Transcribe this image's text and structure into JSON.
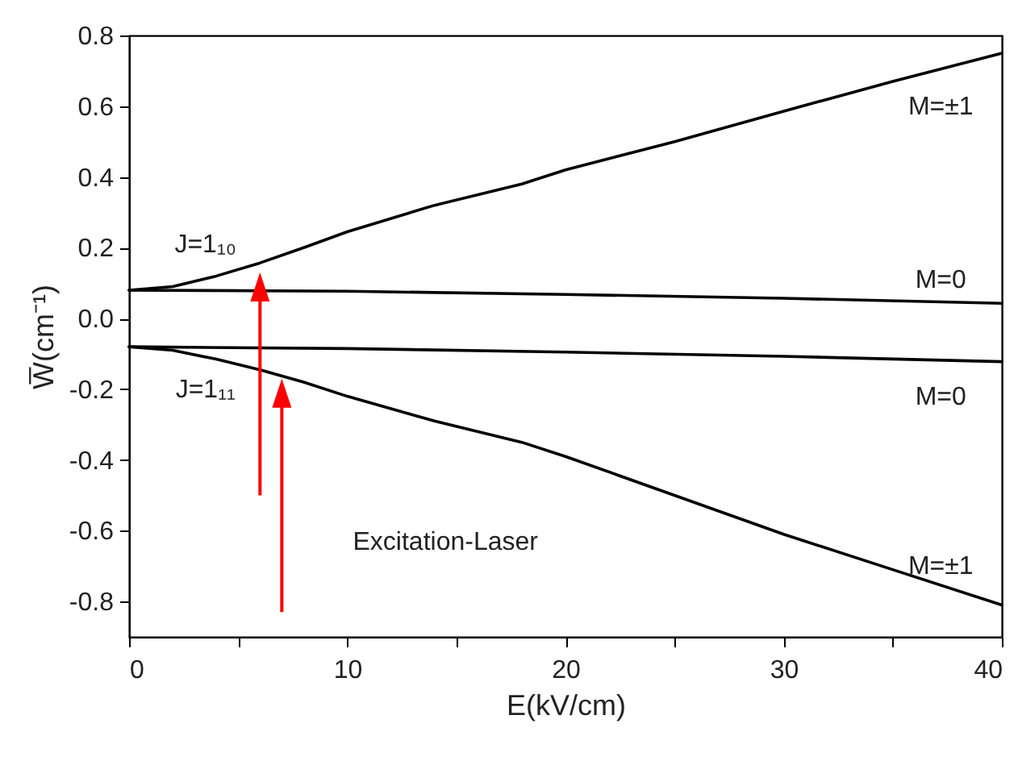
{
  "chart_data": {
    "type": "line",
    "xlabel": "E(kV/cm)",
    "ylabel": "W̅(cm⁻¹)",
    "xlim": [
      0,
      40
    ],
    "xticks": [
      0,
      {
        "value": 5,
        "label": null
      },
      10,
      {
        "value": 15,
        "label": null
      },
      20,
      {
        "value": 25,
        "label": null
      },
      30,
      {
        "value": 35,
        "label": null
      },
      40
    ],
    "ylim": [
      -0.9,
      0.8
    ],
    "yticks": [
      -0.8,
      -0.6,
      -0.4,
      -0.2,
      {
        "value": 0,
        "label": "0.0"
      },
      0.2,
      0.4,
      0.6,
      0.8
    ],
    "grid": false,
    "legend": false,
    "marker": "none",
    "line_style": "solid",
    "series": [
      {
        "color": "#000000",
        "x": [
          0,
          2,
          4,
          6,
          8,
          10,
          14,
          18,
          20,
          25,
          30,
          35,
          40
        ],
        "values": [
          0.08,
          0.09,
          0.12,
          0.157,
          0.2,
          0.245,
          0.32,
          0.38,
          0.42,
          0.5,
          0.586,
          0.67,
          0.75
        ]
      },
      {
        "color": "#000000",
        "x": [
          0,
          10,
          20,
          30,
          40
        ],
        "values": [
          0.08,
          0.077,
          0.068,
          0.057,
          0.043
        ]
      },
      {
        "color": "#000000",
        "x": [
          0,
          10,
          20,
          30,
          40
        ],
        "values": [
          -0.08,
          -0.085,
          -0.095,
          -0.107,
          -0.122
        ]
      },
      {
        "color": "#000000",
        "x": [
          0,
          2,
          4,
          6,
          8,
          10,
          14,
          18,
          20,
          25,
          30,
          35,
          40
        ],
        "values": [
          -0.08,
          -0.09,
          -0.115,
          -0.145,
          -0.18,
          -0.22,
          -0.29,
          -0.35,
          -0.39,
          -0.5,
          -0.61,
          -0.71,
          -0.81
        ]
      }
    ],
    "annotations": [
      "J=1₁₀",
      "J=1₁₁",
      "M=±1",
      "M=0",
      "M=0",
      "M=±1",
      "Excitation-Laser"
    ]
  }
}
